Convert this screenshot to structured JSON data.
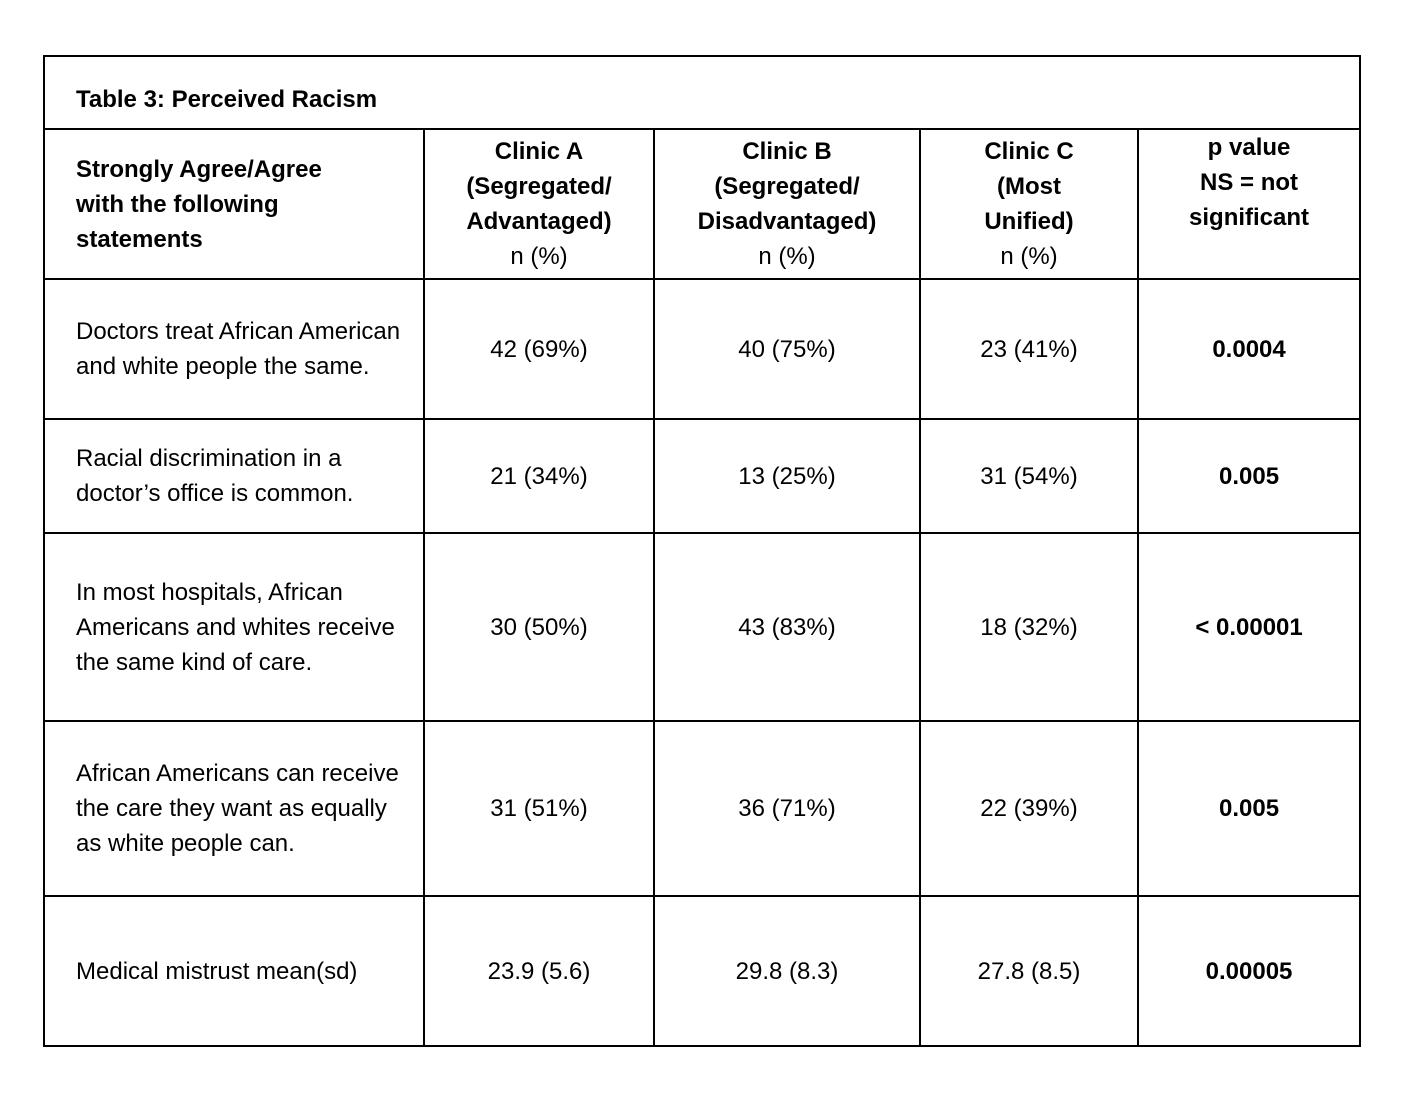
{
  "table": {
    "title": "Table 3: Perceived Racism",
    "header": {
      "statement_label": "Strongly Agree/Agree with the following statements",
      "clinic_a": {
        "line1": "Clinic A",
        "line2": "(Segregated/",
        "line3": "Advantaged)",
        "line4": "n (%)"
      },
      "clinic_b": {
        "line1": "Clinic B",
        "line2": "(Segregated/",
        "line3": "Disadvantaged)",
        "line4": "n (%)"
      },
      "clinic_c": {
        "line1": "Clinic C",
        "line2": "(Most",
        "line3": "Unified)",
        "line4": "n (%)"
      },
      "p_value": {
        "line1": "p value",
        "line2": "NS = not",
        "line3": "significant"
      }
    },
    "rows": [
      {
        "statement": "Doctors treat African American and white people the same.",
        "clinic_a": "42 (69%)",
        "clinic_b": "40 (75%)",
        "clinic_c": "23 (41%)",
        "p_value": "0.0004"
      },
      {
        "statement": "Racial discrimination in a doctor’s office is common.",
        "clinic_a": "21 (34%)",
        "clinic_b": "13 (25%)",
        "clinic_c": "31 (54%)",
        "p_value": "0.005"
      },
      {
        "statement": "In most hospitals, African Americans and whites receive the same kind of care.",
        "clinic_a": "30 (50%)",
        "clinic_b": "43 (83%)",
        "clinic_c": "18 (32%)",
        "p_value": "< 0.00001"
      },
      {
        "statement": "African Americans can receive the care they want as equally as white people can.",
        "clinic_a": "31 (51%)",
        "clinic_b": "36 (71%)",
        "clinic_c": "22 (39%)",
        "p_value": "0.005"
      },
      {
        "statement": "Medical mistrust mean(sd)",
        "clinic_a": "23.9 (5.6)",
        "clinic_b": "29.8 (8.3)",
        "clinic_c": "27.8 (8.5)",
        "p_value": "0.00005"
      }
    ]
  }
}
